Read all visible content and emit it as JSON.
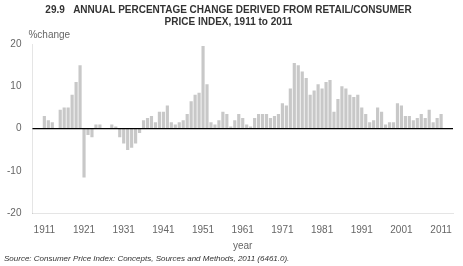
{
  "chart_data": {
    "type": "bar",
    "title": "29.9   ANNUAL PERCENTAGE CHANGE DERIVED FROM RETAIL/CONSUMER",
    "subtitle": "PRICE INDEX, 1911 to 2011",
    "ylabel": "%change",
    "xlabel": "year",
    "annotations": [
      "Source: Consumer Price Index: Concepts, Sources and Methods, 2011 (6461.0)."
    ],
    "color": "#c8c8c8",
    "grid": false,
    "xlim": [
      1908,
      2014
    ],
    "xticks": [
      1911,
      1921,
      1931,
      1941,
      1951,
      1961,
      1971,
      1981,
      1991,
      2001,
      2011
    ],
    "ylim": [
      -20,
      20
    ],
    "yticks": [
      -20,
      -10,
      0,
      10,
      20
    ],
    "x": [
      1911,
      1912,
      1913,
      1914,
      1915,
      1916,
      1917,
      1918,
      1919,
      1920,
      1921,
      1922,
      1923,
      1924,
      1925,
      1926,
      1927,
      1928,
      1929,
      1930,
      1931,
      1932,
      1933,
      1934,
      1935,
      1936,
      1937,
      1938,
      1939,
      1940,
      1941,
      1942,
      1943,
      1944,
      1945,
      1946,
      1947,
      1948,
      1949,
      1950,
      1951,
      1952,
      1953,
      1954,
      1955,
      1956,
      1957,
      1958,
      1959,
      1960,
      1961,
      1962,
      1963,
      1964,
      1965,
      1966,
      1967,
      1968,
      1969,
      1970,
      1971,
      1972,
      1973,
      1974,
      1975,
      1976,
      1977,
      1978,
      1979,
      1980,
      1981,
      1982,
      1983,
      1984,
      1985,
      1986,
      1987,
      1988,
      1989,
      1990,
      1991,
      1992,
      1993,
      1994,
      1995,
      1996,
      1997,
      1998,
      1999,
      2000,
      2001,
      2002,
      2003,
      2004,
      2005,
      2006,
      2007,
      2008,
      2009,
      2010,
      2011
    ],
    "values": [
      3.0,
      2.0,
      1.5,
      0.0,
      4.5,
      5.0,
      5.0,
      8.0,
      11.0,
      15.0,
      -11.5,
      -1.5,
      -2.0,
      1.0,
      1.0,
      0.0,
      0.0,
      1.0,
      0.5,
      -2.0,
      -3.5,
      -5.0,
      -4.5,
      -3.5,
      -1.0,
      2.0,
      2.5,
      3.0,
      1.5,
      4.0,
      4.0,
      5.5,
      1.5,
      1.0,
      1.5,
      2.0,
      3.5,
      6.5,
      8.0,
      8.5,
      19.5,
      10.5,
      1.5,
      1.0,
      2.0,
      4.0,
      3.5,
      0.5,
      2.0,
      3.5,
      2.5,
      1.0,
      0.5,
      2.5,
      3.5,
      3.5,
      3.5,
      2.5,
      3.0,
      3.5,
      6.0,
      5.5,
      9.5,
      15.5,
      15.0,
      13.5,
      12.0,
      8.0,
      9.0,
      10.5,
      9.5,
      11.0,
      11.5,
      4.0,
      7.0,
      10.0,
      9.5,
      8.0,
      7.5,
      8.0,
      5.0,
      3.5,
      1.5,
      2.0,
      5.0,
      4.0,
      1.0,
      1.5,
      1.5,
      6.0,
      5.5,
      3.0,
      3.0,
      2.0,
      2.5,
      3.5,
      2.5,
      4.5,
      1.5,
      2.5,
      3.5
    ]
  }
}
